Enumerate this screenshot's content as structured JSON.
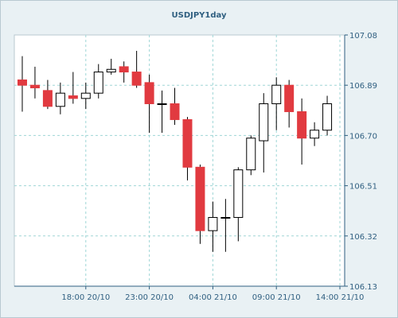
{
  "chart_data": {
    "type": "candlestick",
    "title": "USDJPY1day",
    "xlabel": "",
    "ylabel": "",
    "ylim": [
      106.13,
      107.08
    ],
    "y_ticks": [
      107.08,
      106.89,
      106.7,
      106.51,
      106.32,
      106.13
    ],
    "y_tick_labels": [
      "107.08",
      "106.89",
      "106.70",
      "106.51",
      "106.32",
      "106.13"
    ],
    "x_ticks": [
      {
        "label": "18:00 20/10",
        "index": 5
      },
      {
        "label": "23:00 20/10",
        "index": 10
      },
      {
        "label": "04:00 21/10",
        "index": 15
      },
      {
        "label": "09:00 21/10",
        "index": 20
      },
      {
        "label": "14:00 21/10",
        "index": 25
      }
    ],
    "grid": true,
    "colors": {
      "bull_fill": "#ffffff",
      "bear_fill": "#e13a40",
      "candle_outline": "#000000",
      "grid": "#9fd6d6",
      "axis": "#2f5f80",
      "plot_bg": "#ffffff"
    },
    "candles": [
      {
        "open": 106.91,
        "high": 107.0,
        "low": 106.79,
        "close": 106.89
      },
      {
        "open": 106.89,
        "high": 106.96,
        "low": 106.84,
        "close": 106.88
      },
      {
        "open": 106.87,
        "high": 106.91,
        "low": 106.8,
        "close": 106.81
      },
      {
        "open": 106.81,
        "high": 106.9,
        "low": 106.78,
        "close": 106.86
      },
      {
        "open": 106.85,
        "high": 106.94,
        "low": 106.82,
        "close": 106.84
      },
      {
        "open": 106.84,
        "high": 106.9,
        "low": 106.8,
        "close": 106.86
      },
      {
        "open": 106.86,
        "high": 106.97,
        "low": 106.84,
        "close": 106.94
      },
      {
        "open": 106.94,
        "high": 106.99,
        "low": 106.93,
        "close": 106.95
      },
      {
        "open": 106.96,
        "high": 106.98,
        "low": 106.9,
        "close": 106.94
      },
      {
        "open": 106.94,
        "high": 107.02,
        "low": 106.88,
        "close": 106.89
      },
      {
        "open": 106.9,
        "high": 106.93,
        "low": 106.71,
        "close": 106.82
      },
      {
        "open": 106.82,
        "high": 106.87,
        "low": 106.71,
        "close": 106.82
      },
      {
        "open": 106.82,
        "high": 106.88,
        "low": 106.74,
        "close": 106.76
      },
      {
        "open": 106.76,
        "high": 106.77,
        "low": 106.53,
        "close": 106.58
      },
      {
        "open": 106.58,
        "high": 106.59,
        "low": 106.29,
        "close": 106.34
      },
      {
        "open": 106.34,
        "high": 106.45,
        "low": 106.26,
        "close": 106.39
      },
      {
        "open": 106.39,
        "high": 106.46,
        "low": 106.26,
        "close": 106.39
      },
      {
        "open": 106.39,
        "high": 106.58,
        "low": 106.3,
        "close": 106.57
      },
      {
        "open": 106.57,
        "high": 106.7,
        "low": 106.55,
        "close": 106.69
      },
      {
        "open": 106.68,
        "high": 106.86,
        "low": 106.56,
        "close": 106.82
      },
      {
        "open": 106.82,
        "high": 106.92,
        "low": 106.72,
        "close": 106.89
      },
      {
        "open": 106.89,
        "high": 106.91,
        "low": 106.73,
        "close": 106.79
      },
      {
        "open": 106.79,
        "high": 106.84,
        "low": 106.59,
        "close": 106.69
      },
      {
        "open": 106.69,
        "high": 106.75,
        "low": 106.66,
        "close": 106.72
      },
      {
        "open": 106.72,
        "high": 106.85,
        "low": 106.7,
        "close": 106.82
      }
    ]
  }
}
